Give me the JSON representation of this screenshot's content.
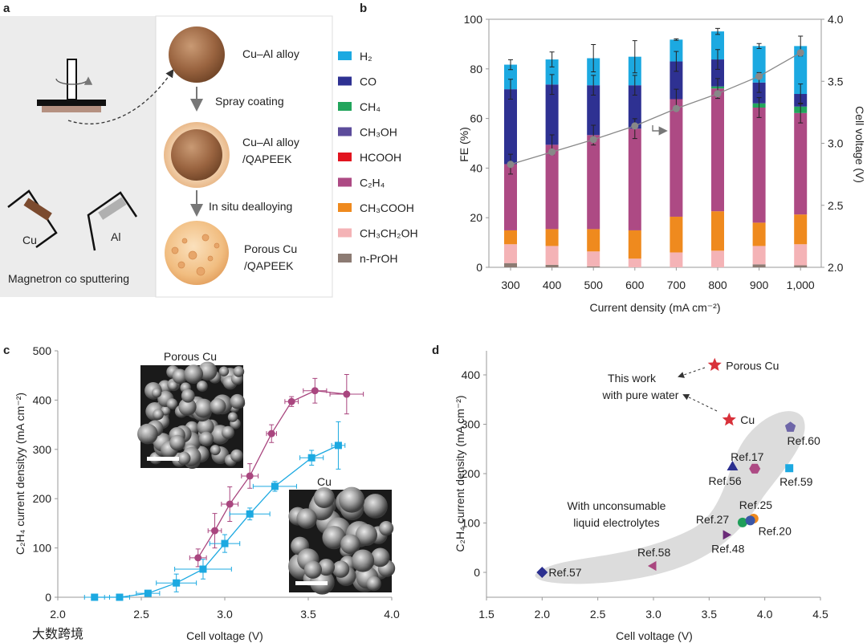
{
  "panel_letters": {
    "a": "a",
    "b": "b",
    "c": "c",
    "d": "d"
  },
  "watermark": "大数跨境",
  "panel_a": {
    "sputter_caption": "Magnetron co sputtering",
    "target_cu": "Cu",
    "target_al": "Al",
    "steps": [
      {
        "label1": "Cu–Al alloy",
        "label2": ""
      },
      {
        "label1": "Cu–Al alloy",
        "label2": "/QAPEEK"
      },
      {
        "label1": "Porous Cu",
        "label2": "/QAPEEK"
      }
    ],
    "arrows": [
      "Spray coating",
      "In situ dealloying"
    ]
  },
  "chart_data": [
    {
      "panel": "b",
      "type": "bar",
      "stacked": true,
      "categories": [
        "300",
        "400",
        "500",
        "600",
        "700",
        "800",
        "900",
        "1,000"
      ],
      "xlabel": "Current density (mA cm⁻²)",
      "ylabel": "FE (%)",
      "ylabel_right": "Cell voltage (V)",
      "ylim": [
        0,
        100
      ],
      "yticks": [
        "0",
        "20",
        "40",
        "60",
        "80",
        "100"
      ],
      "ylim_right": [
        2.0,
        4.0
      ],
      "yticks_right": [
        "2.0",
        "2.5",
        "3.0",
        "3.5",
        "4.0"
      ],
      "series": [
        {
          "name": "n-PrOH",
          "color": "#8c7b73",
          "values": [
            1.7,
            1.0,
            0.4,
            0,
            0,
            0,
            1.2,
            0.8
          ]
        },
        {
          "name": "CH₃CH₂OH",
          "color": "#f4b3b6",
          "values": [
            7.6,
            7.6,
            6.0,
            3.5,
            6.0,
            6.7,
            7.4,
            8.5
          ]
        },
        {
          "name": "CH₃COOH",
          "color": "#ef8a1e",
          "values": [
            5.6,
            6.8,
            9.0,
            11.4,
            14.4,
            15.9,
            9.4,
            12.0
          ]
        },
        {
          "name": "C₂H₄",
          "color": "#ad4a84",
          "values": [
            26.7,
            34.0,
            37.9,
            41.0,
            47.4,
            49.5,
            46.4,
            40.9
          ]
        },
        {
          "name": "HCOOH",
          "color": "#e2141f",
          "values": [
            0,
            0,
            0,
            0,
            0,
            0,
            0,
            0
          ]
        },
        {
          "name": "CH₃OH",
          "color": "#5c4c9b",
          "values": [
            0,
            0,
            0,
            0,
            0,
            0,
            0,
            0
          ]
        },
        {
          "name": "CH₄",
          "color": "#22a55c",
          "values": [
            0,
            0,
            0,
            0,
            0,
            0.8,
            1.7,
            2.6
          ]
        },
        {
          "name": "CO",
          "color": "#2e3192",
          "values": [
            30.2,
            24.3,
            20.1,
            17.5,
            15.2,
            10.9,
            8.4,
            5.1
          ]
        },
        {
          "name": "H₂",
          "color": "#1ca9e1",
          "values": [
            9.9,
            10.1,
            10.9,
            11.5,
            8.8,
            11.3,
            14.7,
            19.3
          ]
        }
      ],
      "legend_order": [
        "H₂",
        "CO",
        "CH₄",
        "CH₃OH",
        "HCOOH",
        "C₂H₄",
        "CH₃COOH",
        "CH₃CH₂OH",
        "n-PrOH"
      ],
      "total_error": [
        2,
        3,
        5.5,
        6.5,
        0.3,
        1.2,
        1,
        4
      ],
      "voltage": {
        "name": "Cell voltage",
        "color": "#808080",
        "values": [
          2.83,
          2.93,
          3.03,
          3.14,
          3.28,
          3.4,
          3.54,
          3.73
        ]
      }
    },
    {
      "panel": "c",
      "type": "line",
      "xlabel": "Cell voltage (V)",
      "ylabel": "C₂H₄ current densityy (mA cm⁻²)",
      "xlim": [
        2.0,
        4.0
      ],
      "xticks": [
        "2.0",
        "2.5",
        "3.0",
        "3.5",
        "4.0"
      ],
      "ylim": [
        0,
        500
      ],
      "yticks": [
        "0",
        "100",
        "200",
        "300",
        "400",
        "500"
      ],
      "insets": [
        "Porous Cu",
        "Cu"
      ],
      "series": [
        {
          "name": "Porous Cu",
          "color": "#a9467f",
          "marker": "circle",
          "x": [
            2.84,
            2.94,
            3.03,
            3.15,
            3.28,
            3.4,
            3.54,
            3.73
          ],
          "y": [
            80,
            135,
            189,
            246,
            332,
            397,
            419,
            412
          ],
          "yerr": [
            18,
            35,
            35,
            25,
            18,
            10,
            25,
            40
          ],
          "xerr": [
            0.05,
            0.04,
            0.05,
            0.05,
            0.03,
            0.04,
            0.07,
            0.1
          ]
        },
        {
          "name": "Cu",
          "color": "#1ca9e1",
          "marker": "square",
          "x": [
            2.22,
            2.37,
            2.54,
            2.71,
            2.87,
            3.0,
            3.15,
            3.3,
            3.52,
            3.68
          ],
          "y": [
            0,
            0,
            8,
            29,
            57,
            109,
            169,
            225,
            283,
            308
          ],
          "yerr": [
            0,
            0,
            5,
            18,
            20,
            18,
            12,
            10,
            15,
            48
          ],
          "xerr": [
            0.06,
            0.06,
            0.07,
            0.12,
            0.17,
            0.09,
            0.12,
            0.13,
            0.07,
            0.04
          ]
        }
      ]
    },
    {
      "panel": "d",
      "type": "scatter",
      "xlabel": "Cell voltage (V)",
      "ylabel": "C₂H₄ current density (mA cm⁻²)",
      "xlim": [
        1.5,
        4.5
      ],
      "xticks": [
        "1.5",
        "2.0",
        "2.5",
        "3.0",
        "3.5",
        "4.0",
        "4.5"
      ],
      "ylim": [
        -20,
        440
      ],
      "yticks": [
        "0",
        "100",
        "200",
        "300",
        "400"
      ],
      "annotations": {
        "this_work_1": "This work",
        "this_work_2": "with pure water",
        "liquid_1": "With unconsumable",
        "liquid_2": "liquid electrolytes"
      },
      "points": [
        {
          "label": "Porous Cu",
          "x": 3.55,
          "y": 420,
          "marker": "star",
          "color": "#d8313a"
        },
        {
          "label": "Cu",
          "x": 3.68,
          "y": 309,
          "marker": "star",
          "color": "#d8313a"
        },
        {
          "label": "Ref.60",
          "x": 4.23,
          "y": 294,
          "marker": "pentagon",
          "color": "#6e66a8"
        },
        {
          "label": "Ref.56",
          "x": 3.71,
          "y": 213,
          "marker": "triangle-up",
          "color": "#2b2f8f"
        },
        {
          "label": "Ref.17",
          "x": 3.91,
          "y": 210,
          "marker": "hexagon",
          "color": "#ad4a84"
        },
        {
          "label": "Ref.59",
          "x": 4.22,
          "y": 211,
          "marker": "square",
          "color": "#1ca9e1"
        },
        {
          "label": "Ref.25",
          "x": 3.9,
          "y": 109,
          "marker": "circle",
          "color": "#ef8a1e"
        },
        {
          "label": "Ref.27",
          "x": 3.8,
          "y": 101,
          "marker": "circle",
          "color": "#1f9e5a"
        },
        {
          "label": "Ref.20",
          "x": 3.87,
          "y": 105,
          "marker": "circle",
          "color": "#3b56a6"
        },
        {
          "label": "Ref.48",
          "x": 3.65,
          "y": 76,
          "marker": "triangle-right",
          "color": "#6a2a78"
        },
        {
          "label": "Ref.58",
          "x": 3.0,
          "y": 13,
          "marker": "triangle-left",
          "color": "#a9467f"
        },
        {
          "label": "Ref.57",
          "x": 2.0,
          "y": 0,
          "marker": "diamond",
          "color": "#2b2f8f"
        }
      ]
    }
  ]
}
